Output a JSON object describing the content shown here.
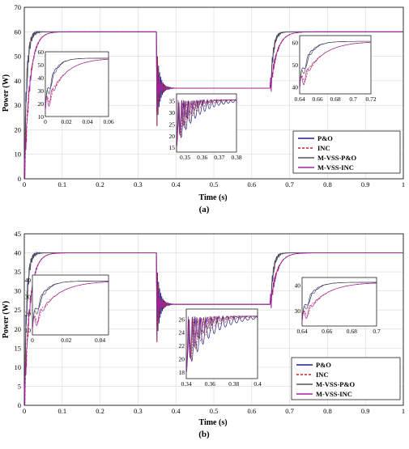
{
  "chart_data": [
    {
      "type": "line",
      "panel_label": "(a)",
      "xlabel": "Time (s)",
      "ylabel": "Power (W)",
      "xlim": [
        0,
        1
      ],
      "ylim": [
        0,
        70
      ],
      "xticks": [
        "0",
        "0.1",
        "0.2",
        "0.3",
        "0.4",
        "0.5",
        "0.6",
        "0.7",
        "0.8",
        "0.9",
        "1"
      ],
      "yticks": [
        "0",
        "10",
        "20",
        "30",
        "40",
        "50",
        "60",
        "70"
      ],
      "grid": true,
      "legend_position": "bottom-right",
      "series": [
        {
          "name": "P&O",
          "color": "#1f1f8f",
          "style": "solid"
        },
        {
          "name": "INC",
          "color": "#cc2222",
          "style": "dashed"
        },
        {
          "name": "M-VSS-P&O",
          "color": "#555555",
          "style": "solid"
        },
        {
          "name": "M-VSS-INC",
          "color": "#a020a0",
          "style": "solid"
        }
      ],
      "steady_levels": [
        {
          "x": [
            0,
            0.35
          ],
          "y": 60
        },
        {
          "x": [
            0.35,
            0.65
          ],
          "y": 37
        },
        {
          "x": [
            0.65,
            1
          ],
          "y": 60
        }
      ],
      "insets": [
        {
          "xlim": [
            0,
            0.06
          ],
          "ylim": [
            10,
            60
          ],
          "xticks": [
            "0",
            "0.02",
            "0.04",
            "0.06"
          ],
          "yticks": [
            "10",
            "20",
            "30",
            "40",
            "50",
            "60"
          ]
        },
        {
          "xlim": [
            0.345,
            0.38
          ],
          "ylim": [
            13,
            38
          ],
          "xticks": [
            "0.35",
            "0.36",
            "0.37",
            "0.38"
          ],
          "yticks": [
            "15",
            "20",
            "25",
            "30",
            "35"
          ]
        },
        {
          "xlim": [
            0.64,
            0.72
          ],
          "ylim": [
            37,
            63
          ],
          "xticks": [
            "0.64",
            "0.66",
            "0.68",
            "0.7",
            "0.72"
          ],
          "yticks": [
            "40",
            "50",
            "60"
          ]
        }
      ]
    },
    {
      "type": "line",
      "panel_label": "(b)",
      "xlabel": "Time (s)",
      "ylabel": "Power (W)",
      "xlim": [
        0,
        1
      ],
      "ylim": [
        0,
        45
      ],
      "xticks": [
        "0",
        "0.1",
        "0.2",
        "0.3",
        "0.4",
        "0.5",
        "0.6",
        "0.7",
        "0.8",
        "0.9",
        "1"
      ],
      "yticks": [
        "0",
        "5",
        "10",
        "15",
        "20",
        "25",
        "30",
        "35",
        "40",
        "45"
      ],
      "grid": true,
      "legend_position": "bottom-right",
      "series": [
        {
          "name": "P&O",
          "color": "#1f1f8f",
          "style": "solid"
        },
        {
          "name": "INC",
          "color": "#cc2222",
          "style": "dashed"
        },
        {
          "name": "M-VSS-P&O",
          "color": "#555555",
          "style": "solid"
        },
        {
          "name": "M-VSS-INC",
          "color": "#a020a0",
          "style": "solid"
        }
      ],
      "steady_levels": [
        {
          "x": [
            0,
            0.35
          ],
          "y": 40
        },
        {
          "x": [
            0.35,
            0.65
          ],
          "y": 26.5
        },
        {
          "x": [
            0.65,
            1
          ],
          "y": 40
        }
      ],
      "insets": [
        {
          "xlim": [
            0,
            0.045
          ],
          "ylim": [
            7,
            43
          ],
          "xticks": [
            "0",
            "0.02",
            "0.04"
          ],
          "yticks": [
            "10",
            "20",
            "30",
            "40"
          ]
        },
        {
          "xlim": [
            0.34,
            0.4
          ],
          "ylim": [
            17,
            27.5
          ],
          "xticks": [
            "0.34",
            "0.36",
            "0.38",
            "0.4"
          ],
          "yticks": [
            "18",
            "20",
            "22",
            "24",
            "26"
          ]
        },
        {
          "xlim": [
            0.64,
            0.7
          ],
          "ylim": [
            24,
            43
          ],
          "xticks": [
            "0.64",
            "0.66",
            "0.68",
            "0.7"
          ],
          "yticks": [
            "30",
            "40"
          ]
        }
      ]
    }
  ]
}
